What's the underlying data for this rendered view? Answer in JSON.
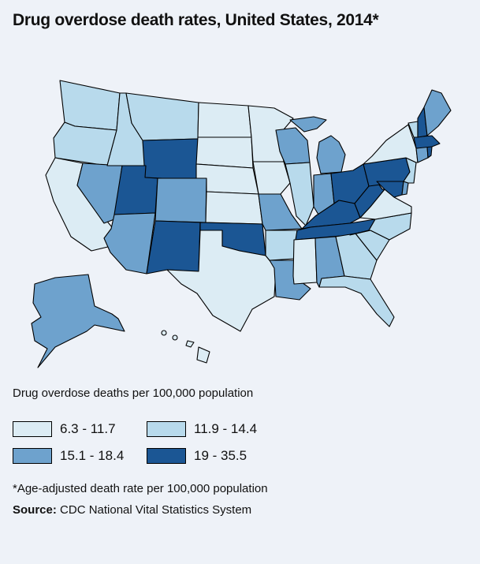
{
  "title": "Drug overdose death rates, United States, 2014*",
  "legend": {
    "title": "Drug overdose deaths per 100,000 population",
    "bins": [
      {
        "label": "6.3 - 11.7",
        "color": "#dcecf4"
      },
      {
        "label": "11.9 - 14.4",
        "color": "#b8daec"
      },
      {
        "label": "15.1 - 18.4",
        "color": "#6ea2cd"
      },
      {
        "label": "19 - 35.5",
        "color": "#1b5694"
      }
    ]
  },
  "footnote": "*Age-adjusted death rate per 100,000 population",
  "source": {
    "label": "Source:",
    "text": "CDC National Vital Statistics System"
  },
  "map_data": {
    "type": "choropleth",
    "region": "United States",
    "year": 2014,
    "state_bins": {
      "WA": "11.9 - 14.4",
      "OR": "11.9 - 14.4",
      "CA": "6.3 - 11.7",
      "NV": "15.1 - 18.4",
      "ID": "11.9 - 14.4",
      "MT": "11.9 - 14.4",
      "WY": "19 - 35.5",
      "UT": "19 - 35.5",
      "AZ": "15.1 - 18.4",
      "CO": "15.1 - 18.4",
      "NM": "19 - 35.5",
      "ND": "6.3 - 11.7",
      "SD": "6.3 - 11.7",
      "NE": "6.3 - 11.7",
      "KS": "6.3 - 11.7",
      "OK": "19 - 35.5",
      "TX": "6.3 - 11.7",
      "MN": "6.3 - 11.7",
      "IA": "6.3 - 11.7",
      "MO": "15.1 - 18.4",
      "AR": "11.9 - 14.4",
      "LA": "15.1 - 18.4",
      "WI": "15.1 - 18.4",
      "IL": "11.9 - 14.4",
      "MI": "15.1 - 18.4",
      "IN": "15.1 - 18.4",
      "OH": "19 - 35.5",
      "KY": "19 - 35.5",
      "TN": "19 - 35.5",
      "MS": "6.3 - 11.7",
      "AL": "15.1 - 18.4",
      "GA": "11.9 - 14.4",
      "FL": "11.9 - 14.4",
      "SC": "11.9 - 14.4",
      "NC": "11.9 - 14.4",
      "VA": "6.3 - 11.7",
      "WV": "19 - 35.5",
      "MD": "19 - 35.5",
      "DE": "15.1 - 18.4",
      "PA": "19 - 35.5",
      "NJ": "11.9 - 14.4",
      "NY": "6.3 - 11.7",
      "CT": "15.1 - 18.4",
      "RI": "19 - 35.5",
      "MA": "19 - 35.5",
      "VT": "11.9 - 14.4",
      "NH": "19 - 35.5",
      "ME": "15.1 - 18.4",
      "AK": "15.1 - 18.4",
      "HI": "6.3 - 11.7"
    }
  }
}
